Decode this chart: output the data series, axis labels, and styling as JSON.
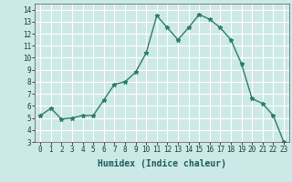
{
  "x": [
    0,
    1,
    2,
    3,
    4,
    5,
    6,
    7,
    8,
    9,
    10,
    11,
    12,
    13,
    14,
    15,
    16,
    17,
    18,
    19,
    20,
    21,
    22,
    23
  ],
  "y": [
    5.2,
    5.8,
    4.9,
    5.0,
    5.2,
    5.2,
    6.5,
    7.8,
    8.0,
    8.8,
    10.4,
    13.5,
    12.5,
    11.5,
    12.5,
    13.6,
    13.2,
    12.5,
    11.5,
    9.5,
    6.6,
    6.2,
    5.2,
    3.0
  ],
  "line_color": "#2d7d6e",
  "marker": "*",
  "marker_size": 3.5,
  "bg_color": "#cce9e7",
  "grid_color": "#ffffff",
  "xlabel": "Humidex (Indice chaleur)",
  "xlim": [
    -0.5,
    23.5
  ],
  "ylim": [
    3,
    14.5
  ],
  "yticks": [
    3,
    4,
    5,
    6,
    7,
    8,
    9,
    10,
    11,
    12,
    13,
    14
  ],
  "xticks": [
    0,
    1,
    2,
    3,
    4,
    5,
    6,
    7,
    8,
    9,
    10,
    11,
    12,
    13,
    14,
    15,
    16,
    17,
    18,
    19,
    20,
    21,
    22,
    23
  ],
  "tick_fontsize": 5.5,
  "xlabel_fontsize": 7.0,
  "line_width": 1.0
}
